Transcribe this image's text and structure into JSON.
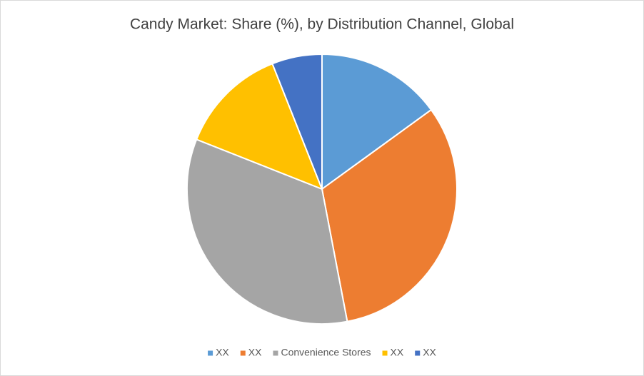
{
  "chart_data": {
    "type": "pie",
    "title": "Candy Market: Share (%), by Distribution Channel, Global",
    "categories": [
      "XX",
      "XX",
      "Convenience Stores",
      "XX",
      "XX"
    ],
    "values": [
      15,
      32,
      34,
      13,
      6
    ],
    "colors": [
      "#5b9bd5",
      "#ed7d31",
      "#a5a5a5",
      "#ffc000",
      "#4472c4"
    ],
    "legend": "bottom"
  }
}
